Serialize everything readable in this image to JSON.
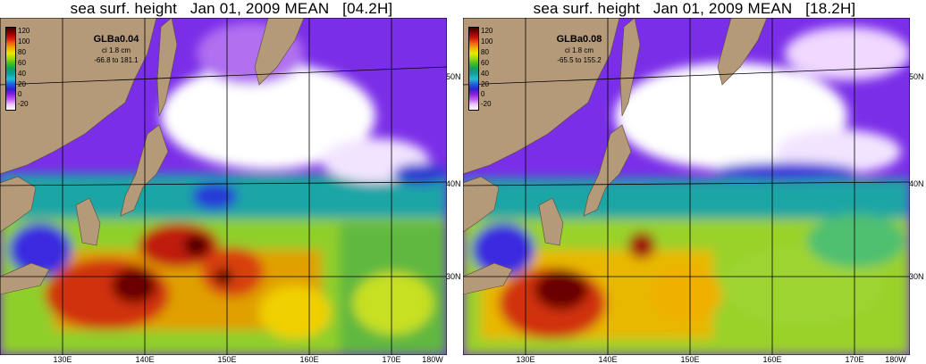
{
  "panels": [
    {
      "title": "sea surf. height   Jan 01, 2009 MEAN   [04.2H]",
      "run": "GLBa0.04",
      "contour_interval": "ci 1.8 cm",
      "range": "-66.8 to 181.1"
    },
    {
      "title": "sea surf. height   Jan 01, 2009 MEAN   [18.2H]",
      "run": "GLBa0.08",
      "contour_interval": "ci 1.8 cm",
      "range": "-65.5 to 155.2"
    }
  ],
  "colorbar": {
    "ticks": [
      "120",
      "100",
      "80",
      "60",
      "40",
      "20",
      "0",
      "-20"
    ],
    "units": "cm"
  },
  "axes": {
    "lon_labels": [
      "130E",
      "140E",
      "150E",
      "160E",
      "170E",
      "180W"
    ],
    "lat_labels": [
      "50N",
      "40N",
      "30N"
    ]
  },
  "colors": {
    "land": "#b49a78",
    "gridline": "#000000",
    "high_ssh": "#8b0000",
    "low_ssh": "#9b30ff"
  }
}
